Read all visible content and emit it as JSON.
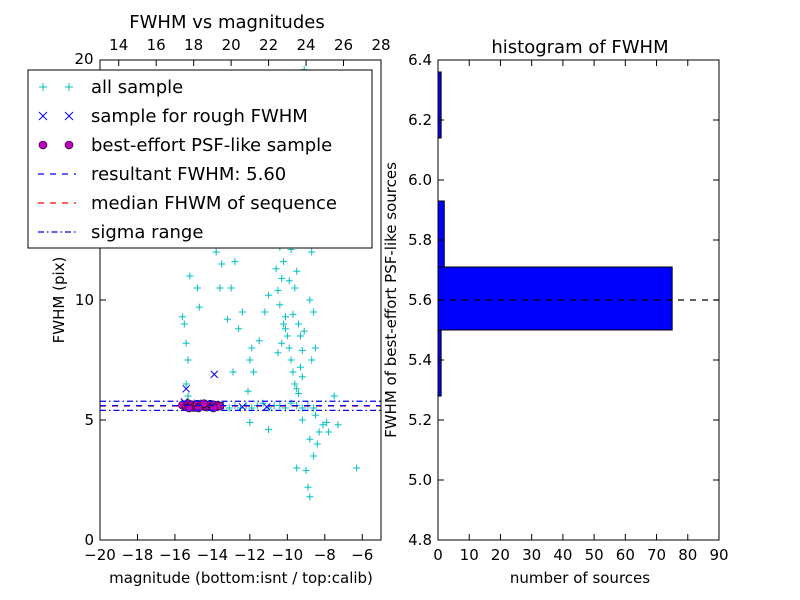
{
  "chart_data": [
    {
      "type": "scatter",
      "title": "FWHM vs magnitudes",
      "xlabel": "magnitude (bottom:isnt / top:calib)",
      "ylabel": "FWHM (pix)",
      "xlim": [
        -20,
        -5
      ],
      "ylim": [
        0,
        20
      ],
      "secondary_xlim": [
        13.0,
        28.0
      ],
      "x_ticks": [
        -20,
        -18,
        -16,
        -14,
        -12,
        -10,
        -8,
        -6
      ],
      "x_tick_labels": [
        "−20",
        "−18",
        "−16",
        "−14",
        "−12",
        "−10",
        "−8",
        "−6"
      ],
      "y_ticks": [
        0,
        5,
        10
      ],
      "y_tick_labels": [
        "0",
        "5",
        "10"
      ],
      "top_ticks": [
        14,
        16,
        18,
        20,
        22,
        24,
        26,
        28
      ],
      "top_tick_labels": [
        "14",
        "16",
        "18",
        "20",
        "22",
        "24",
        "26",
        "28"
      ],
      "top_left_label": "20",
      "legend_position": "top-left",
      "legend": [
        {
          "label": "all sample",
          "marker": "plus",
          "color": "#00bfbf"
        },
        {
          "label": "sample for rough FWHM",
          "marker": "x",
          "color": "#0000ff"
        },
        {
          "label": "best-effort PSF-like sample",
          "marker": "circle",
          "color": "#bf00bf"
        },
        {
          "label": "resultant FWHM: 5.60",
          "marker": "dashed",
          "color": "#0000ff"
        },
        {
          "label": "median FHWM of sequence",
          "marker": "dashed",
          "color": "#ff0000"
        },
        {
          "label": "sigma range",
          "marker": "dashdot",
          "color": "#0000ff"
        }
      ],
      "lines": {
        "resultant_fwhm": 5.6,
        "median_fwhm": 5.58,
        "sigma_low": 5.4,
        "sigma_high": 5.78
      },
      "series": [
        {
          "name": "all sample",
          "color": "#00bfbf",
          "points": [
            [
              -15.5,
              5.6
            ],
            [
              -15.2,
              5.7
            ],
            [
              -14.9,
              5.5
            ],
            [
              -14.6,
              5.6
            ],
            [
              -14.3,
              5.7
            ],
            [
              -14.0,
              5.6
            ],
            [
              -13.7,
              5.5
            ],
            [
              -13.4,
              5.6
            ],
            [
              -13.1,
              5.5
            ],
            [
              -12.8,
              5.6
            ],
            [
              -12.5,
              5.5
            ],
            [
              -12.2,
              5.6
            ],
            [
              -11.9,
              5.5
            ],
            [
              -11.6,
              5.6
            ],
            [
              -11.3,
              5.7
            ],
            [
              -11.0,
              5.5
            ],
            [
              -10.7,
              5.6
            ],
            [
              -10.4,
              5.6
            ],
            [
              -10.1,
              5.5
            ],
            [
              -9.8,
              5.7
            ],
            [
              -9.5,
              5.6
            ],
            [
              -9.2,
              5.5
            ],
            [
              -8.9,
              5.6
            ],
            [
              -8.6,
              5.5
            ],
            [
              -15.6,
              9.3
            ],
            [
              -15.5,
              9.0
            ],
            [
              -15.4,
              8.2
            ],
            [
              -15.3,
              7.5
            ],
            [
              -15.4,
              6.5
            ],
            [
              -15.3,
              6.0
            ],
            [
              -15.2,
              11.0
            ],
            [
              -15.0,
              12.5
            ],
            [
              -14.9,
              14.3
            ],
            [
              -15.1,
              13.0
            ],
            [
              -14.8,
              10.5
            ],
            [
              -14.7,
              9.7
            ],
            [
              -14.1,
              14.6
            ],
            [
              -14.0,
              13.2
            ],
            [
              -13.8,
              12.0
            ],
            [
              -13.6,
              10.5
            ],
            [
              -13.5,
              11.5
            ],
            [
              -13.2,
              9.2
            ],
            [
              -13.0,
              10.5
            ],
            [
              -12.9,
              7.0
            ],
            [
              -12.6,
              8.8
            ],
            [
              -12.4,
              9.5
            ],
            [
              -12.0,
              7.5
            ],
            [
              -11.9,
              8.0
            ],
            [
              -11.5,
              8.3
            ],
            [
              -11.2,
              9.5
            ],
            [
              -11.0,
              10.2
            ],
            [
              -11.8,
              7.0
            ],
            [
              -12.8,
              11.6
            ],
            [
              -12.1,
              6.2
            ],
            [
              -10.7,
              12.5
            ],
            [
              -10.6,
              11.3
            ],
            [
              -10.5,
              10.4
            ],
            [
              -10.4,
              9.8
            ],
            [
              -10.3,
              10.9
            ],
            [
              -10.2,
              9.0
            ],
            [
              -10.1,
              9.3
            ],
            [
              -10.0,
              8.5
            ],
            [
              -9.9,
              8.0
            ],
            [
              -9.8,
              7.5
            ],
            [
              -9.7,
              7.0
            ],
            [
              -9.6,
              6.5
            ],
            [
              -9.5,
              6.3
            ],
            [
              -9.4,
              6.1
            ],
            [
              -9.3,
              7.2
            ],
            [
              -9.2,
              6.8
            ],
            [
              -10.6,
              13.5
            ],
            [
              -10.4,
              12.2
            ],
            [
              -10.2,
              11.6
            ],
            [
              -10.0,
              12.4
            ],
            [
              -9.8,
              12.1
            ],
            [
              -9.6,
              10.5
            ],
            [
              -9.5,
              11.2
            ],
            [
              -9.7,
              9.4
            ],
            [
              -9.9,
              10.8
            ],
            [
              -10.1,
              8.8
            ],
            [
              -10.3,
              8.2
            ],
            [
              -10.5,
              7.8
            ],
            [
              -9.4,
              9.0
            ],
            [
              -9.3,
              8.5
            ],
            [
              -9.2,
              7.9
            ],
            [
              -9.1,
              8.7
            ],
            [
              -9.9,
              15.2
            ],
            [
              -9.6,
              16.3
            ],
            [
              -9.4,
              18.0
            ],
            [
              -9.1,
              19.6
            ],
            [
              -8.9,
              19.3
            ],
            [
              -8.6,
              18.5
            ],
            [
              -10.2,
              16.5
            ],
            [
              -9.8,
              17.2
            ],
            [
              -10.5,
              14.5
            ],
            [
              -9.0,
              14.0
            ],
            [
              -8.8,
              13.2
            ],
            [
              -8.7,
              12.0
            ],
            [
              -8.8,
              10.0
            ],
            [
              -8.6,
              9.5
            ],
            [
              -8.5,
              8.0
            ],
            [
              -8.7,
              7.5
            ],
            [
              -9.5,
              3.0
            ],
            [
              -9.0,
              2.9
            ],
            [
              -8.9,
              2.2
            ],
            [
              -8.8,
              1.8
            ],
            [
              -8.6,
              3.5
            ],
            [
              -8.4,
              4.0
            ],
            [
              -8.3,
              4.5
            ],
            [
              -8.1,
              4.8
            ],
            [
              -8.8,
              4.2
            ],
            [
              -9.2,
              5.0
            ],
            [
              -8.5,
              5.2
            ],
            [
              -7.9,
              4.9
            ],
            [
              -7.8,
              4.5
            ],
            [
              -7.5,
              6.0
            ],
            [
              -7.3,
              4.8
            ],
            [
              -6.3,
              3.0
            ],
            [
              -11.0,
              4.6
            ],
            [
              -12.0,
              4.9
            ]
          ]
        },
        {
          "name": "sample for rough FWHM",
          "color": "#0000ff",
          "points": [
            [
              -15.4,
              6.3
            ],
            [
              -13.9,
              6.9
            ],
            [
              -15.5,
              5.75
            ],
            [
              -14.8,
              5.7
            ],
            [
              -14.2,
              5.65
            ],
            [
              -13.6,
              5.6
            ],
            [
              -12.4,
              5.55
            ],
            [
              -11.1,
              5.55
            ]
          ]
        },
        {
          "name": "best-effort PSF-like sample",
          "color": "#bf00bf",
          "points": [
            [
              -15.6,
              5.62
            ],
            [
              -15.4,
              5.55
            ],
            [
              -15.3,
              5.68
            ],
            [
              -15.2,
              5.58
            ],
            [
              -15.1,
              5.64
            ],
            [
              -15.0,
              5.52
            ],
            [
              -14.9,
              5.6
            ],
            [
              -14.8,
              5.66
            ],
            [
              -14.7,
              5.55
            ],
            [
              -14.6,
              5.62
            ],
            [
              -14.5,
              5.58
            ],
            [
              -14.4,
              5.65
            ],
            [
              -14.3,
              5.54
            ],
            [
              -14.2,
              5.6
            ],
            [
              -14.1,
              5.66
            ],
            [
              -14.0,
              5.57
            ],
            [
              -13.9,
              5.63
            ],
            [
              -13.8,
              5.55
            ],
            [
              -13.7,
              5.61
            ],
            [
              -13.6,
              5.58
            ],
            [
              -14.45,
              5.68
            ],
            [
              -14.75,
              5.5
            ],
            [
              -15.25,
              5.5
            ],
            [
              -13.95,
              5.5
            ]
          ]
        }
      ]
    },
    {
      "type": "bar",
      "orientation": "horizontal",
      "title": "histogram of FWHM",
      "xlabel": "number of sources",
      "ylabel": "FWHM of best-effort PSF-like sources",
      "xlim": [
        0,
        90
      ],
      "ylim": [
        4.8,
        6.4
      ],
      "x_ticks": [
        0,
        10,
        20,
        30,
        40,
        50,
        60,
        70,
        80,
        90
      ],
      "x_tick_labels": [
        "0",
        "10",
        "20",
        "30",
        "40",
        "50",
        "60",
        "70",
        "80",
        "90"
      ],
      "y_ticks": [
        4.8,
        5.0,
        5.2,
        5.4,
        5.6,
        5.8,
        6.0,
        6.2,
        6.4
      ],
      "y_tick_labels": [
        "4.8",
        "5.0",
        "5.2",
        "5.4",
        "5.6",
        "5.8",
        "6.0",
        "6.2",
        "6.4"
      ],
      "bar_color": "#0000ff",
      "bins": [
        {
          "low": 5.28,
          "high": 5.5,
          "count": 1
        },
        {
          "low": 5.5,
          "high": 5.71,
          "count": 75
        },
        {
          "low": 5.71,
          "high": 5.93,
          "count": 2
        },
        {
          "low": 6.14,
          "high": 6.36,
          "count": 1
        }
      ],
      "reference_line": 5.6
    }
  ]
}
